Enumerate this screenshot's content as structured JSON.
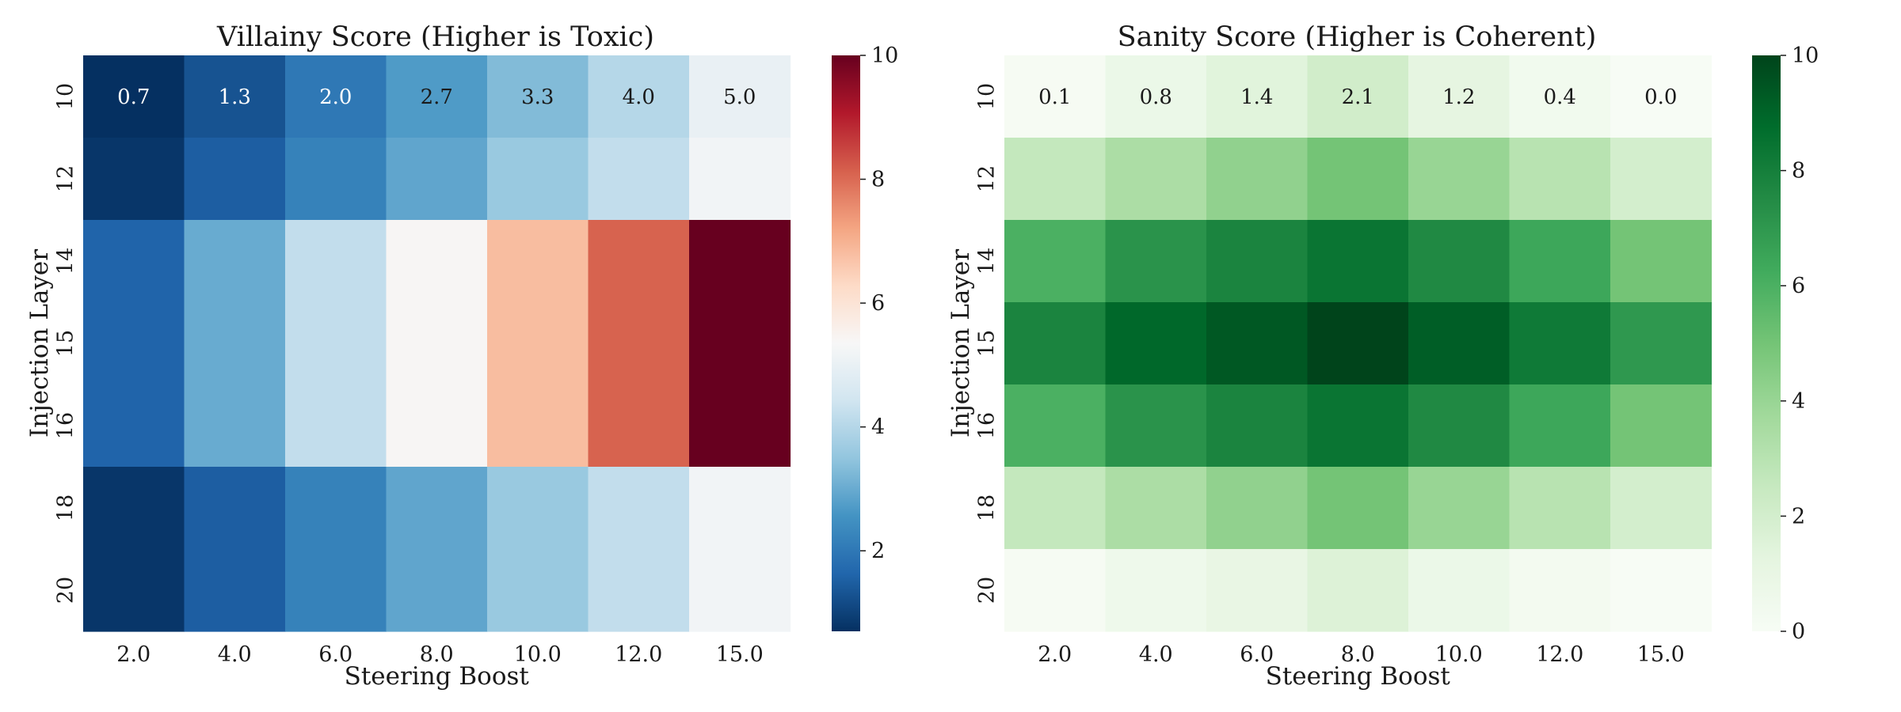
{
  "chart_data": [
    {
      "type": "heatmap",
      "title": "Villainy Score (Higher is Toxic)",
      "xlabel": "Steering Boost",
      "ylabel": "Injection Layer",
      "x_categories": [
        "2.0",
        "4.0",
        "6.0",
        "8.0",
        "10.0",
        "12.0",
        "15.0"
      ],
      "y_categories": [
        "10",
        "12",
        "14",
        "15",
        "16",
        "18",
        "20"
      ],
      "colormap": "RdBu_r",
      "vmin": 0.7,
      "vmax": 10,
      "colorbar_ticks": [
        "2",
        "4",
        "6",
        "8",
        "10"
      ],
      "annotated_rows": [
        "10"
      ],
      "values": [
        [
          0.7,
          1.3,
          2.0,
          2.7,
          3.3,
          4.0,
          5.0
        ],
        [
          0.8,
          1.5,
          2.2,
          2.9,
          3.6,
          4.2,
          5.2
        ],
        [
          1.6,
          3.0,
          4.2,
          5.4,
          6.8,
          8.1,
          10.0
        ],
        [
          1.6,
          3.0,
          4.2,
          5.4,
          6.8,
          8.1,
          10.0
        ],
        [
          1.6,
          3.0,
          4.2,
          5.4,
          6.8,
          8.1,
          10.0
        ],
        [
          0.8,
          1.5,
          2.2,
          2.9,
          3.6,
          4.2,
          5.2
        ],
        [
          0.8,
          1.5,
          2.2,
          2.9,
          3.6,
          4.2,
          5.2
        ]
      ]
    },
    {
      "type": "heatmap",
      "title": "Sanity Score (Higher is Coherent)",
      "xlabel": "Steering Boost",
      "ylabel": "Injection Layer",
      "x_categories": [
        "2.0",
        "4.0",
        "6.0",
        "8.0",
        "10.0",
        "12.0",
        "15.0"
      ],
      "y_categories": [
        "10",
        "12",
        "14",
        "15",
        "16",
        "18",
        "20"
      ],
      "colormap": "Greens",
      "vmin": 0,
      "vmax": 10,
      "colorbar_ticks": [
        "0",
        "2",
        "4",
        "6",
        "8",
        "10"
      ],
      "annotated_rows": [
        "10"
      ],
      "values": [
        [
          0.1,
          0.8,
          1.4,
          2.1,
          1.2,
          0.4,
          0.0
        ],
        [
          2.6,
          3.4,
          4.2,
          5.0,
          4.0,
          3.0,
          2.0
        ],
        [
          6.0,
          7.2,
          7.8,
          8.4,
          7.6,
          6.4,
          5.0
        ],
        [
          7.8,
          8.9,
          9.4,
          10.0,
          9.2,
          8.2,
          7.0
        ],
        [
          6.0,
          7.2,
          7.8,
          8.4,
          7.6,
          6.4,
          5.0
        ],
        [
          2.6,
          3.4,
          4.2,
          5.0,
          4.0,
          3.0,
          2.0
        ],
        [
          0.1,
          0.6,
          1.0,
          1.6,
          0.8,
          0.3,
          0.0
        ]
      ]
    }
  ]
}
